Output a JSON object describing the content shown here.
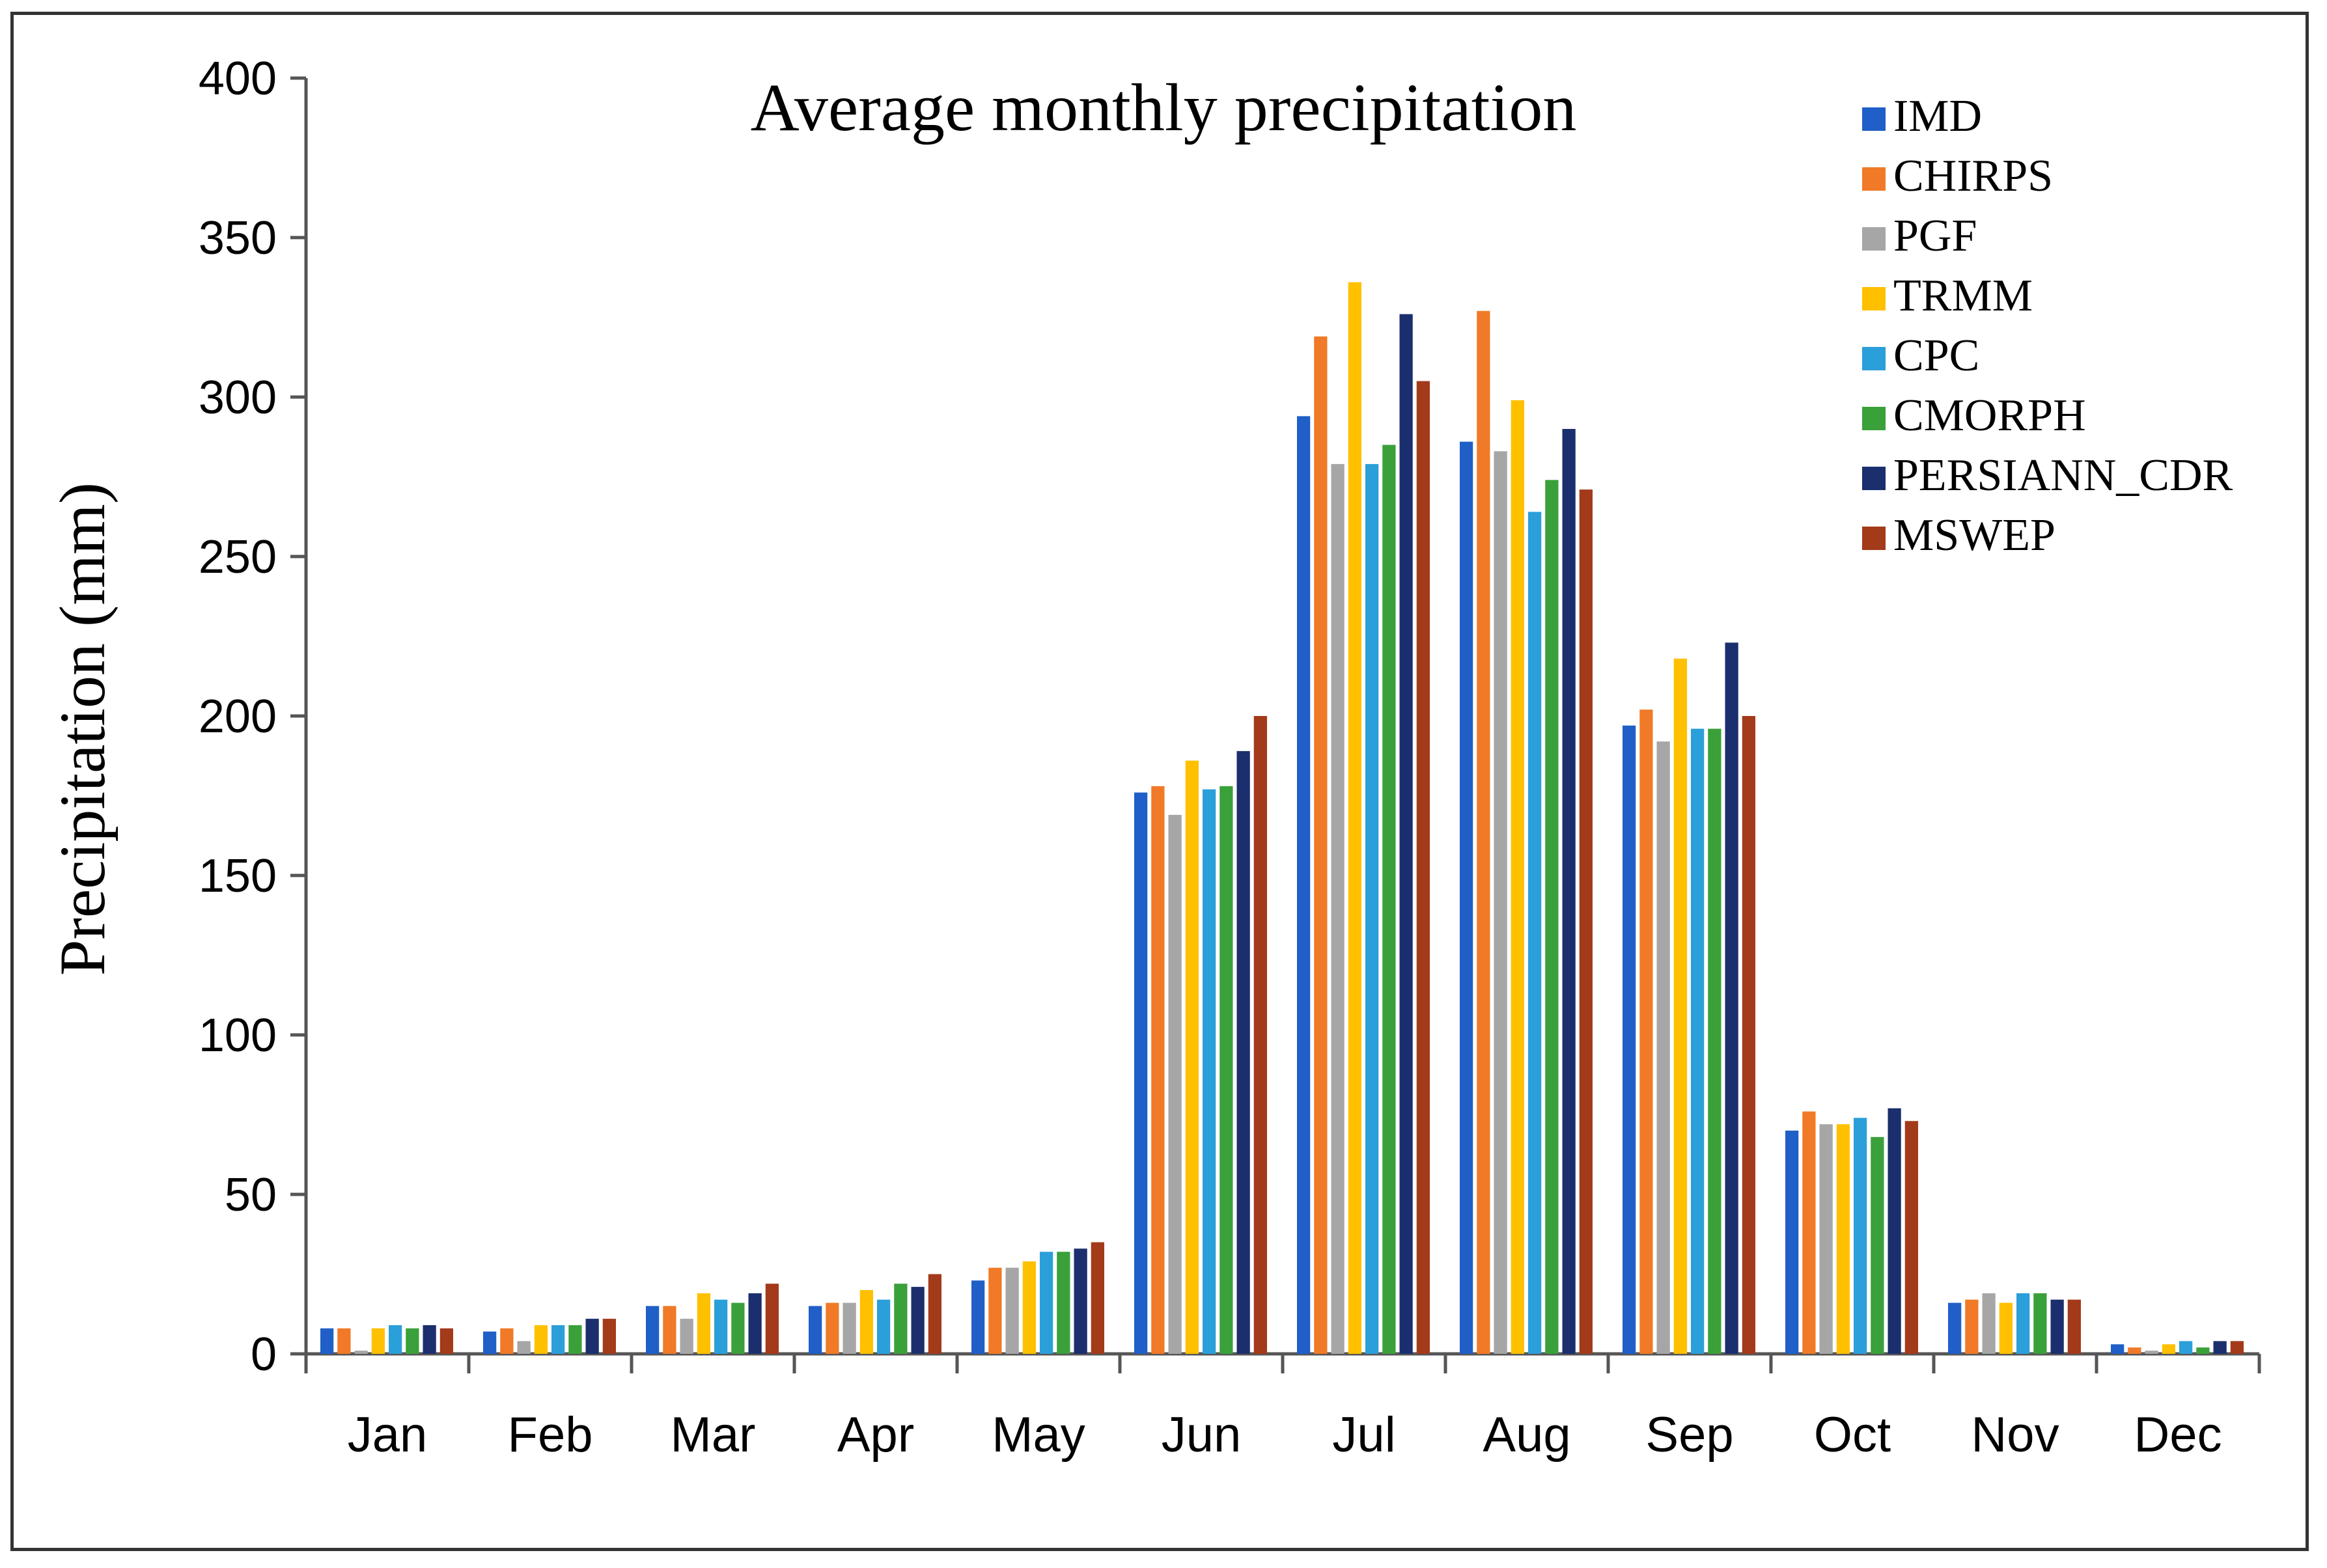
{
  "chart_data": {
    "type": "bar",
    "title": "Average monthly precipitation",
    "xlabel": "",
    "ylabel": "Precipitation (mm)",
    "ylim": [
      0,
      400
    ],
    "yticks": [
      "0",
      "50",
      "100",
      "150",
      "200",
      "250",
      "300",
      "350",
      "400"
    ],
    "grid": false,
    "legend_position": "top-right",
    "categories": [
      "Jan",
      "Feb",
      "Mar",
      "Apr",
      "May",
      "Jun",
      "Jul",
      "Aug",
      "Sep",
      "Oct",
      "Nov",
      "Dec"
    ],
    "series": [
      {
        "name": "IMD",
        "color": "#1f5fc7",
        "values": [
          8,
          7,
          15,
          15,
          23,
          176,
          294,
          286,
          197,
          70,
          16,
          3
        ]
      },
      {
        "name": "CHIRPS",
        "color": "#f07a27",
        "values": [
          8,
          8,
          15,
          16,
          27,
          178,
          319,
          327,
          202,
          76,
          17,
          2
        ]
      },
      {
        "name": "PGF",
        "color": "#a6a6a6",
        "values": [
          1,
          4,
          11,
          16,
          27,
          169,
          279,
          283,
          192,
          72,
          19,
          1
        ]
      },
      {
        "name": "TRMM",
        "color": "#ffc000",
        "values": [
          8,
          9,
          19,
          20,
          29,
          186,
          336,
          299,
          218,
          72,
          16,
          3
        ]
      },
      {
        "name": "CPC",
        "color": "#2b9fd9",
        "values": [
          9,
          9,
          17,
          17,
          32,
          177,
          279,
          264,
          196,
          74,
          19,
          4
        ]
      },
      {
        "name": "CMORPH",
        "color": "#3aa03a",
        "values": [
          8,
          9,
          16,
          22,
          32,
          178,
          285,
          274,
          196,
          68,
          19,
          2
        ]
      },
      {
        "name": "PERSIANN_CDR",
        "color": "#1b2f6e",
        "values": [
          9,
          11,
          19,
          21,
          33,
          189,
          326,
          290,
          223,
          77,
          17,
          4
        ]
      },
      {
        "name": "MSWEP",
        "color": "#a33a1a",
        "values": [
          8,
          11,
          22,
          25,
          35,
          200,
          305,
          271,
          200,
          73,
          17,
          4
        ]
      }
    ]
  }
}
